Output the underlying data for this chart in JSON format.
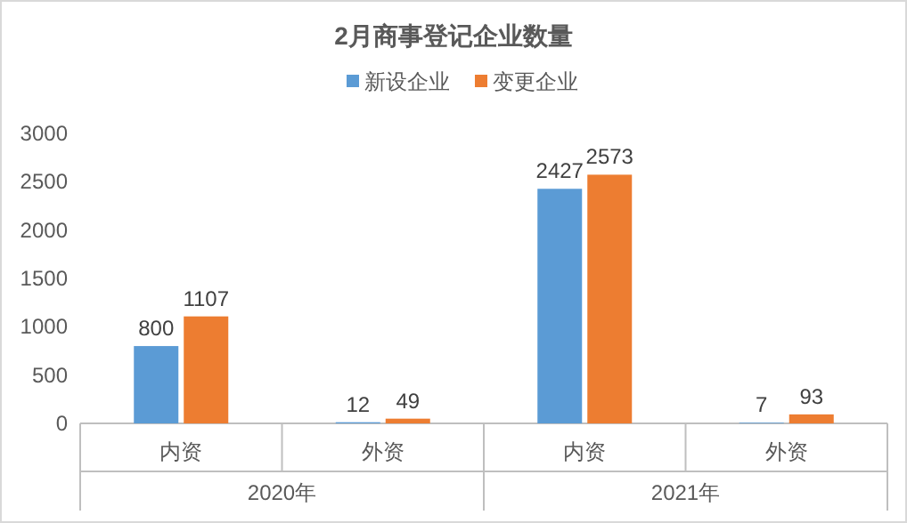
{
  "chart_data": {
    "type": "bar",
    "title": "2月商事登记企业数量",
    "categories": [
      "内资",
      "外资",
      "内资",
      "外资"
    ],
    "series": [
      {
        "name": "新设企业",
        "color": "#5b9bd5",
        "values": [
          800,
          12,
          2427,
          7
        ]
      },
      {
        "name": "变更企业",
        "color": "#ed7d31",
        "values": [
          1107,
          49,
          2573,
          93
        ]
      }
    ],
    "annotations": [
      "2020年",
      "2021年"
    ],
    "ylim": [
      0,
      3000
    ],
    "yticks": [
      0,
      500,
      1000,
      1500,
      2000,
      2500,
      3000
    ],
    "grid": false,
    "legend": "top",
    "data_labels": true
  }
}
